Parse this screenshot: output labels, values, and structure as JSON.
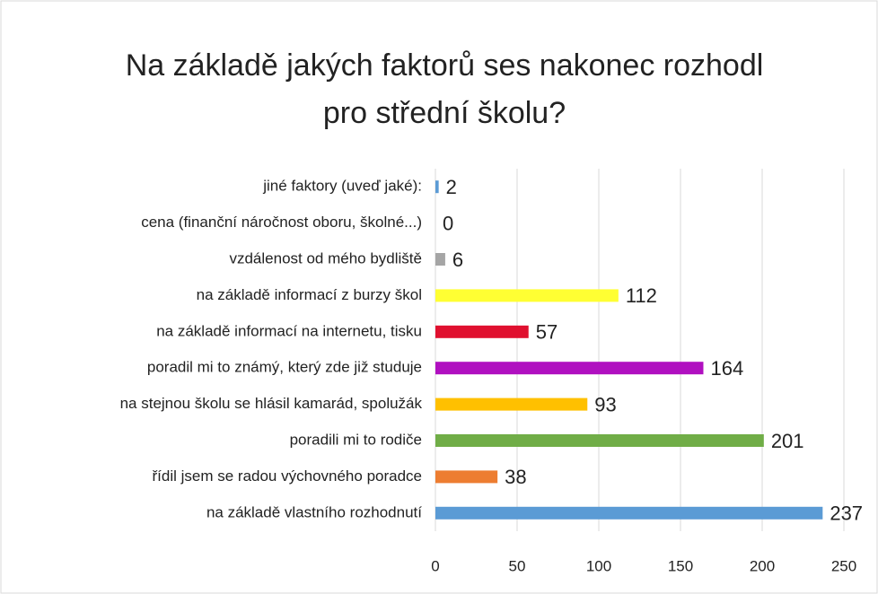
{
  "chart_data": {
    "type": "bar",
    "orientation": "horizontal",
    "title": [
      "Na základě jakých faktorů ses nakonec rozhodl",
      "pro střední školu?"
    ],
    "categories": [
      "jiné faktory (uveď jaké):",
      "cena (finanční náročnost oboru, školné...)",
      "vzdálenost od mého bydliště",
      "na základě informací z burzy škol",
      "na základě informací na internetu, tisku",
      "poradil mi to známý, který zde již studuje",
      "na stejnou školu se hlásil kamarád, spolužák",
      "poradili mi to rodiče",
      "řídil jsem se radou výchovného poradce",
      "na základě vlastního rozhodnutí"
    ],
    "values": [
      2,
      0,
      6,
      112,
      57,
      164,
      93,
      201,
      38,
      237
    ],
    "colors": [
      "#5b9bd5",
      "#7f7f7f",
      "#a5a5a5",
      "#ffff33",
      "#e0102f",
      "#b010c0",
      "#ffc000",
      "#70ad47",
      "#ed7d31",
      "#5b9bd5"
    ],
    "xlim": [
      0,
      250
    ],
    "xticks": [
      0,
      50,
      100,
      150,
      200,
      250
    ],
    "grid": true
  }
}
